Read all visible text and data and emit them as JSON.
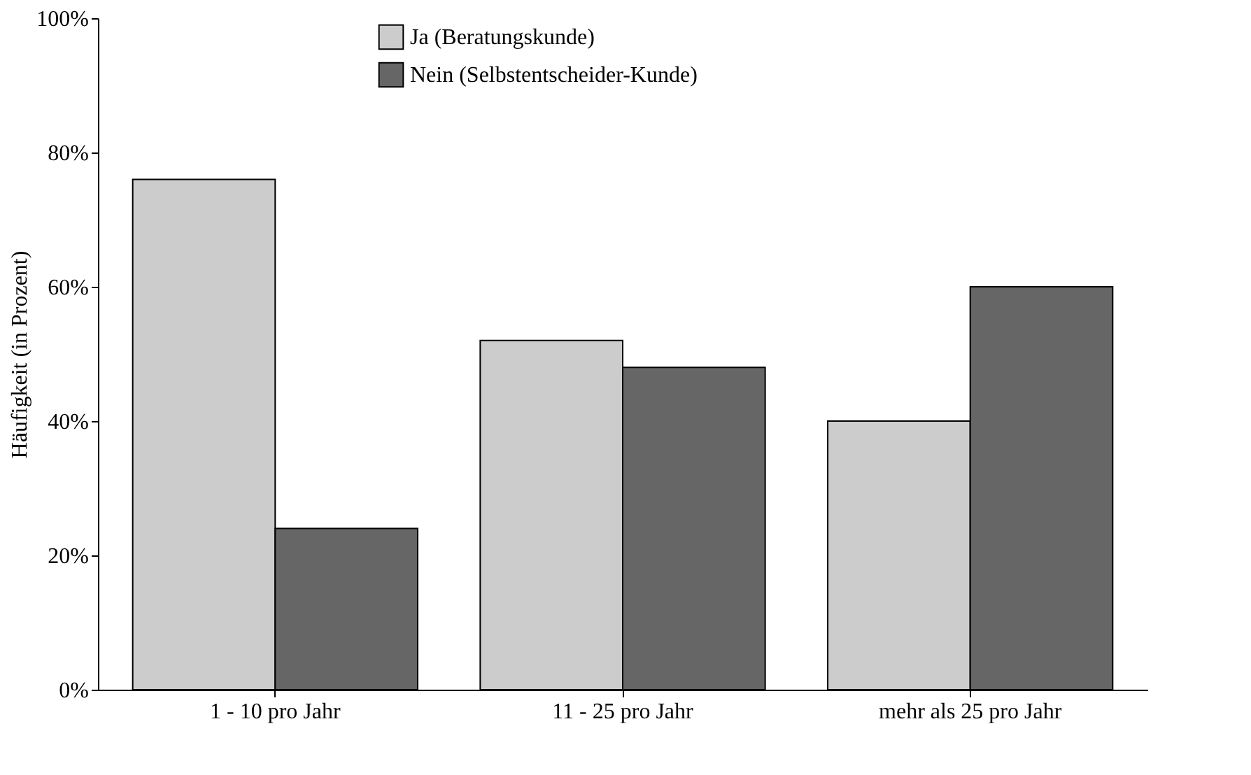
{
  "chart_data": {
    "type": "bar",
    "ylabel": "Häufigkeit (in Prozent)",
    "categories": [
      "1 - 10 pro Jahr",
      "11 - 25 pro Jahr",
      "mehr als 25 pro Jahr"
    ],
    "series": [
      {
        "name": "Ja (Beratungskunde)",
        "color": "#cccccc",
        "values": [
          76,
          52,
          40
        ]
      },
      {
        "name": "Nein (Selbstentscheider-Kunde)",
        "color": "#666666",
        "values": [
          24,
          48,
          60
        ]
      }
    ],
    "ylim": [
      0,
      100
    ],
    "yticks": [
      {
        "value": 0,
        "label": "0%"
      },
      {
        "value": 20,
        "label": "20%"
      },
      {
        "value": 40,
        "label": "40%"
      },
      {
        "value": 60,
        "label": "60%"
      },
      {
        "value": 80,
        "label": "80%"
      },
      {
        "value": 100,
        "label": "100%"
      }
    ],
    "grid": false,
    "legend": "top"
  }
}
